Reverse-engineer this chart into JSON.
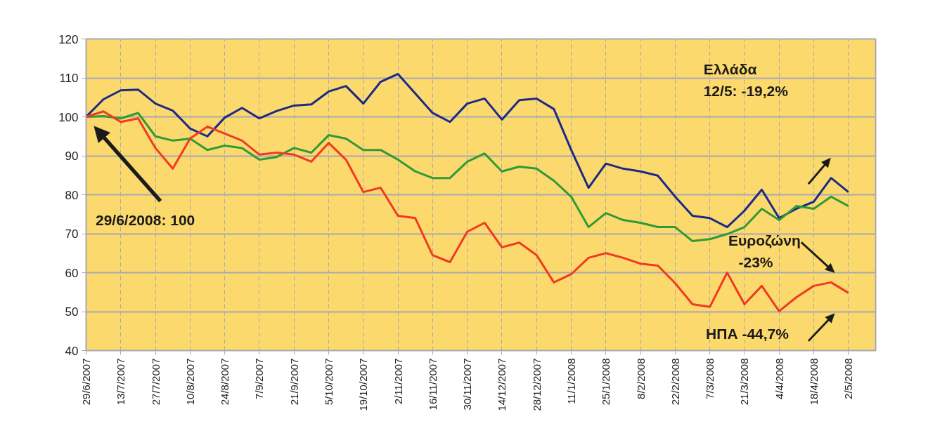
{
  "chart_data": {
    "type": "line",
    "x": [
      "2007-06-29",
      "2007-07-06",
      "2007-07-13",
      "2007-07-20",
      "2007-07-27",
      "2007-08-03",
      "2007-08-10",
      "2007-08-17",
      "2007-08-24",
      "2007-08-31",
      "2007-09-07",
      "2007-09-14",
      "2007-09-21",
      "2007-09-28",
      "2007-10-05",
      "2007-10-12",
      "2007-10-19",
      "2007-10-26",
      "2007-11-02",
      "2007-11-09",
      "2007-11-16",
      "2007-11-23",
      "2007-11-30",
      "2007-12-07",
      "2007-12-14",
      "2007-12-21",
      "2007-12-28",
      "2008-01-04",
      "2008-01-11",
      "2008-01-18",
      "2008-01-25",
      "2008-02-01",
      "2008-02-08",
      "2008-02-15",
      "2008-02-22",
      "2008-02-29",
      "2008-03-07",
      "2008-03-14",
      "2008-03-21",
      "2008-03-28",
      "2008-04-04",
      "2008-04-11",
      "2008-04-18",
      "2008-04-25",
      "2008-05-02"
    ],
    "series": [
      {
        "color": "#1c2a86",
        "values": [
          100,
          104.5,
          106.8,
          107,
          103.4,
          101.6,
          97,
          95,
          99.8,
          102.3,
          99.6,
          101.5,
          102.9,
          103.2,
          106.5,
          107.9,
          103.4,
          109,
          111,
          106,
          101,
          98.7,
          103.4,
          104.7,
          99.3,
          104.3,
          104.7,
          102,
          91.5,
          81.8,
          88,
          86.7,
          86,
          84.9,
          79.5,
          74.6,
          74,
          71.7,
          75.9,
          81.3,
          74,
          76.4,
          78.2,
          84.3,
          80.7
        ]
      },
      {
        "color": "#2f9a3a",
        "values": [
          100,
          100.2,
          99.6,
          101,
          95,
          93.9,
          94.4,
          91.5,
          92.6,
          92,
          89,
          89.7,
          92,
          90.8,
          95.3,
          94.4,
          91.5,
          91.5,
          89,
          86,
          84.3,
          84.3,
          88.5,
          90.6,
          86,
          87.2,
          86.7,
          83.6,
          79.5,
          71.7,
          75.3,
          73.5,
          72.8,
          71.7,
          71.7,
          68.1,
          68.6,
          69.9,
          71.7,
          76.4,
          73.5,
          77.1,
          76.4,
          79.5,
          77.1
        ]
      },
      {
        "color": "#f03a22",
        "values": [
          100,
          101.4,
          98.7,
          99.6,
          92,
          86.7,
          94.4,
          97.5,
          95.7,
          93.9,
          90.3,
          90.8,
          90.3,
          88.5,
          93.3,
          89,
          80.7,
          81.8,
          74.6,
          74,
          64.5,
          62.7,
          70.5,
          72.8,
          66.5,
          67.7,
          64.5,
          57.5,
          59.6,
          63.8,
          65,
          63.8,
          62.3,
          61.8,
          57.3,
          51.9,
          51.2,
          60,
          51.9,
          56.6,
          50.1,
          53.7,
          56.6,
          57.5,
          54.8
        ]
      }
    ],
    "xlim": [
      "2007-06-29",
      "2008-05-13"
    ],
    "xticks": [
      {
        "value": "2007-06-29",
        "label": "29/6/2007"
      },
      {
        "value": "2007-07-13",
        "label": "13/7/2007"
      },
      {
        "value": "2007-07-27",
        "label": "27/7/2007"
      },
      {
        "value": "2007-08-10",
        "label": "10/8/2007"
      },
      {
        "value": "2007-08-24",
        "label": "24/8/2007"
      },
      {
        "value": "2007-09-07",
        "label": "7/9/2007"
      },
      {
        "value": "2007-09-21",
        "label": "21/9/2007"
      },
      {
        "value": "2007-10-05",
        "label": "5/10/2007"
      },
      {
        "value": "2007-10-19",
        "label": "19/10/2007"
      },
      {
        "value": "2007-11-02",
        "label": "2/11/2007"
      },
      {
        "value": "2007-11-16",
        "label": "16/11/2007"
      },
      {
        "value": "2007-11-30",
        "label": "30/11/2007"
      },
      {
        "value": "2007-12-14",
        "label": "14/12/2007"
      },
      {
        "value": "2007-12-28",
        "label": "28/12/2007"
      },
      {
        "value": "2008-01-11",
        "label": "11/1/2008"
      },
      {
        "value": "2008-01-25",
        "label": "25/1/2008"
      },
      {
        "value": "2008-02-08",
        "label": "8/2/2008"
      },
      {
        "value": "2008-02-22",
        "label": "22/2/2008"
      },
      {
        "value": "2008-03-07",
        "label": "7/3/2008"
      },
      {
        "value": "2008-03-21",
        "label": "21/3/2008"
      },
      {
        "value": "2008-04-04",
        "label": "4/4/2008"
      },
      {
        "value": "2008-04-18",
        "label": "18/4/2008"
      },
      {
        "value": "2008-05-02",
        "label": "2/5/2008"
      }
    ],
    "ylim": [
      40,
      120
    ],
    "yticks": [
      40,
      50,
      60,
      70,
      80,
      90,
      100,
      110,
      120
    ],
    "grid": true,
    "marker": "none",
    "line_style": "solid",
    "annotations": [
      "29/6/2008: 100",
      "Ελλάδα\n12/5: -19,2%",
      "Ευροζώνη\n-23%",
      "ΗΠΑ  -44,7%"
    ]
  }
}
